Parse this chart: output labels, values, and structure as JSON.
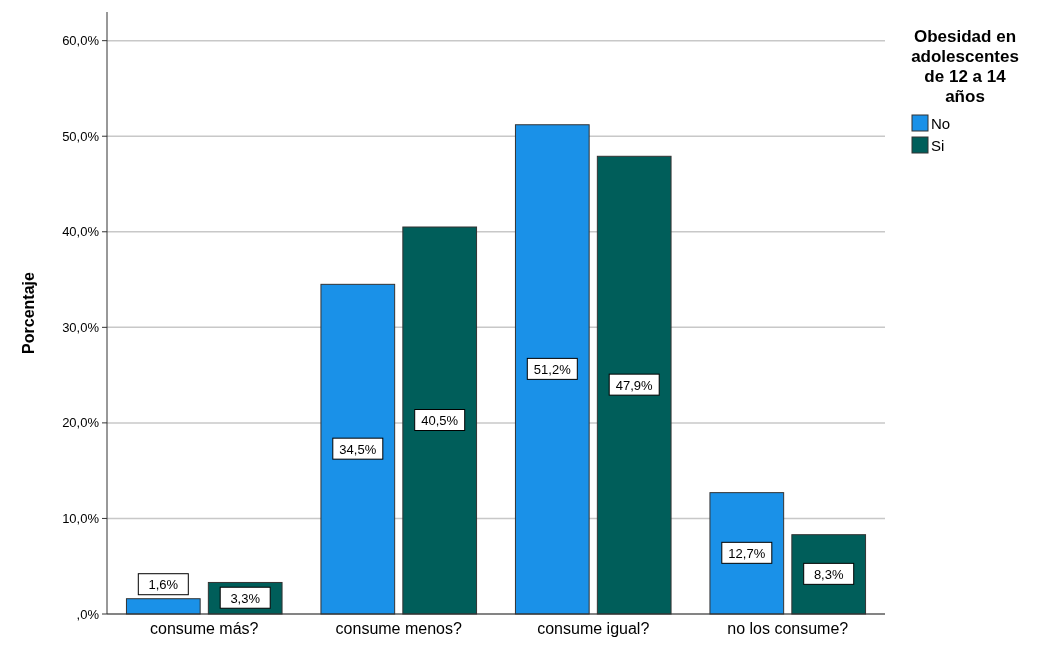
{
  "chart_data": {
    "type": "bar",
    "ylabel": "Porcentaje",
    "legend_title": "Obesidad en adolescentes de 12 a 14 años",
    "categories": [
      "consume más?",
      "consume menos?",
      "consume igual?",
      "no los consume?"
    ],
    "series": [
      {
        "name": "No",
        "color": "#1a91e8",
        "values": [
          1.6,
          34.5,
          51.2,
          12.7
        ],
        "value_labels": [
          "1,6%",
          "34,5%",
          "51,2%",
          "12,7%"
        ]
      },
      {
        "name": "Si",
        "color": "#005e5a",
        "values": [
          3.3,
          40.5,
          47.9,
          8.3
        ],
        "value_labels": [
          "3,3%",
          "40,5%",
          "47,9%",
          "8,3%"
        ]
      }
    ],
    "ylim": [
      0,
      63
    ],
    "yticks": [
      {
        "value": 0,
        "label": ",0%"
      },
      {
        "value": 10,
        "label": "10,0%"
      },
      {
        "value": 20,
        "label": "20,0%"
      },
      {
        "value": 30,
        "label": "30,0%"
      },
      {
        "value": 40,
        "label": "40,0%"
      },
      {
        "value": 50,
        "label": "50,0%"
      },
      {
        "value": 60,
        "label": "60,0%"
      }
    ],
    "grid": "y",
    "legend": "top right"
  }
}
